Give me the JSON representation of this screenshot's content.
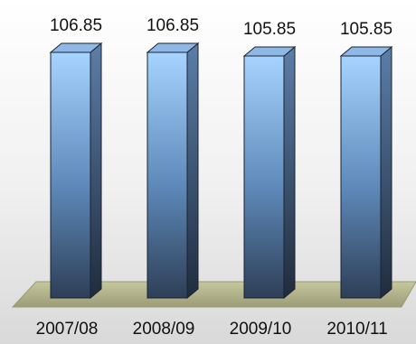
{
  "chart_data": {
    "type": "bar",
    "style": "3d-cylinder-box",
    "categories": [
      "2007/08",
      "2008/09",
      "2009/10",
      "2010/11"
    ],
    "values": [
      106.85,
      106.85,
      105.85,
      105.85
    ],
    "data_labels": [
      "106.85",
      "106.85",
      "105.85",
      "105.85"
    ],
    "title": "",
    "xlabel": "",
    "ylabel": "",
    "grid": false,
    "legend": "none",
    "colors": {
      "bar_top": "#a6d3ff",
      "bar_bottom": "#2e3f57",
      "bar_side": "#3f5f86",
      "bar_cap": "#8fb8e6",
      "floor": "#b8b98f",
      "floor_edge": "#9a9b74"
    }
  }
}
